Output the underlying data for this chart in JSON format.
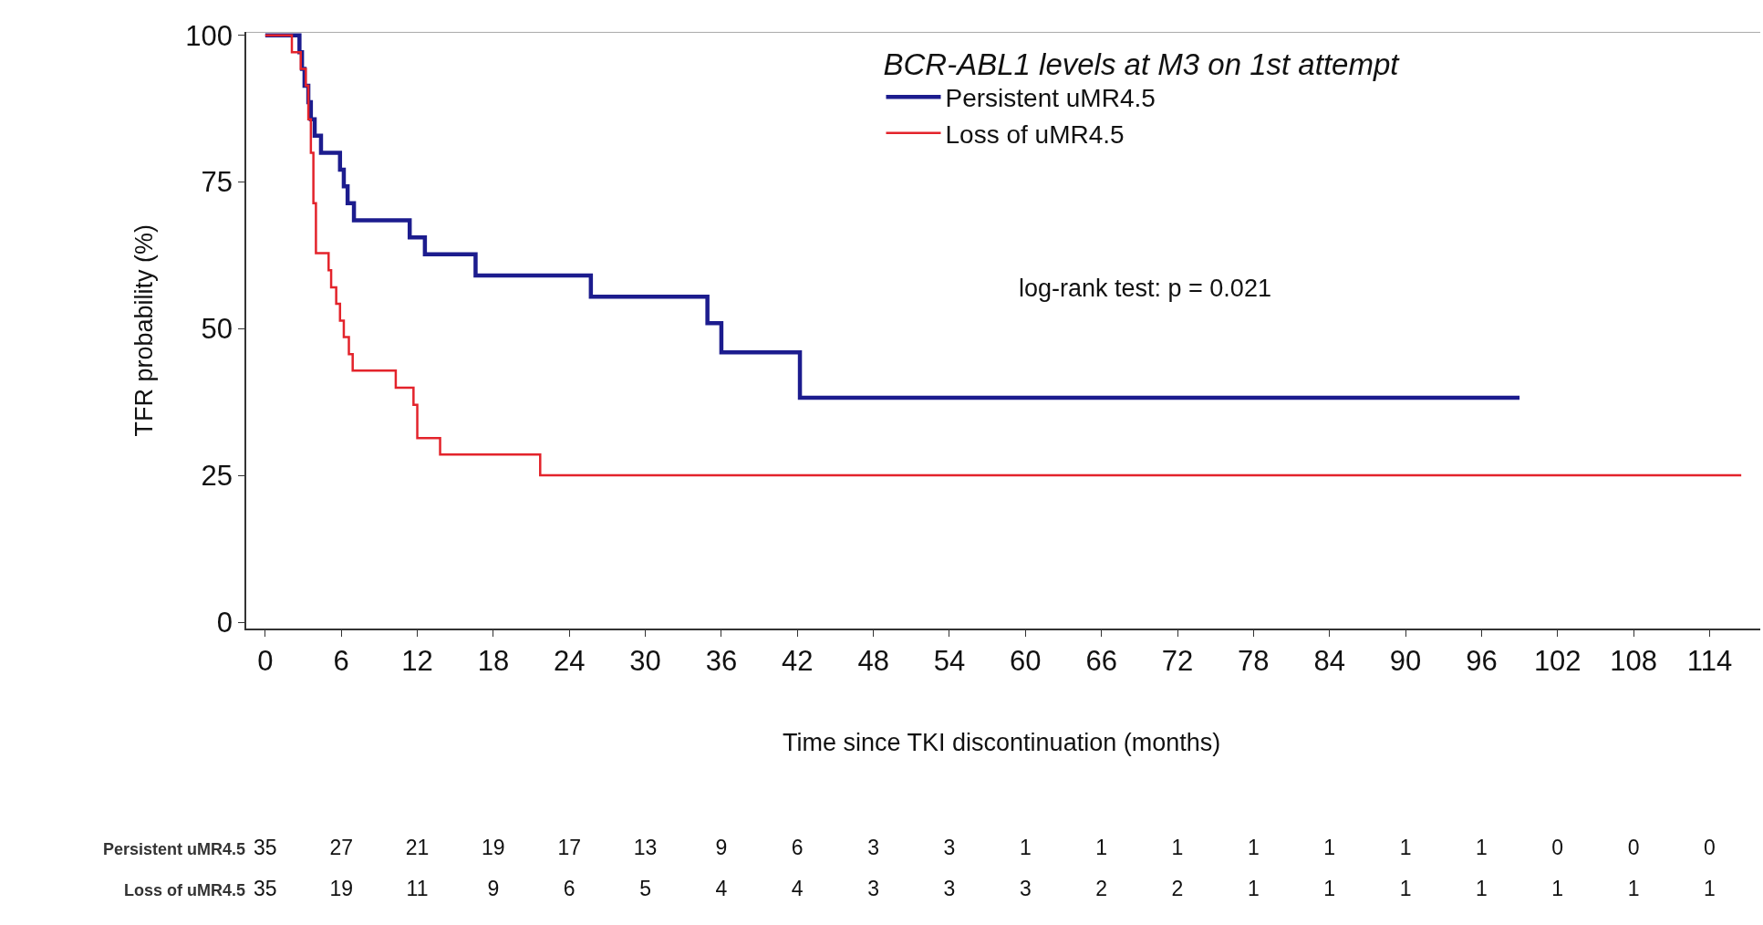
{
  "chart_data": [
    {
      "type": "step",
      "xlabel": "Time since TKI discontinuation (months)",
      "ylabel": "TFR probability (%)",
      "legend_title": "BCR-ABL1 levels at M3 on 1st attempt",
      "legend": "top right",
      "xlim": [
        -1.5,
        118
      ],
      "xticks": [
        0,
        6,
        12,
        18,
        24,
        30,
        36,
        42,
        48,
        54,
        60,
        66,
        72,
        78,
        84,
        90,
        96,
        102,
        108,
        114
      ],
      "ylim": [
        -1,
        100.5
      ],
      "yticks": [
        0,
        25,
        50,
        75,
        100
      ],
      "annotations": [
        "log-rank test: p = 0.021"
      ],
      "series": [
        {
          "name": "Persistent uMR4.5",
          "color": "#1c1c8e",
          "x": [
            0,
            2.7,
            2.9,
            3.1,
            3.4,
            3.6,
            3.9,
            4.4,
            5.9,
            6.2,
            6.5,
            7.0,
            11.4,
            12.6,
            16.6,
            25.7,
            34.9,
            36.0,
            42.2,
            99
          ],
          "values": [
            100,
            97.1,
            94.3,
            91.4,
            88.6,
            85.7,
            82.9,
            80,
            77.1,
            74.3,
            71.4,
            68.5,
            65.6,
            62.7,
            59.1,
            55.5,
            51,
            46,
            38.3,
            38.3
          ]
        },
        {
          "name": "Loss of uMR4.5",
          "color": "#e3232b",
          "x": [
            0,
            2.1,
            2.8,
            3.2,
            3.4,
            3.6,
            3.8,
            4.0,
            5.0,
            5.2,
            5.6,
            5.9,
            6.2,
            6.6,
            6.9,
            10.3,
            11.7,
            12.0,
            13.8,
            21.7,
            116.5
          ],
          "values": [
            100,
            97.1,
            94.3,
            91.4,
            85.7,
            80,
            71.4,
            62.9,
            60,
            57.1,
            54.3,
            51.4,
            48.6,
            45.7,
            42.9,
            40,
            37.1,
            31.4,
            28.6,
            25.1,
            25.1
          ]
        }
      ]
    },
    {
      "type": "heatmap",
      "data_labels": true,
      "categories": [
        null,
        null,
        null,
        null,
        null,
        null,
        null,
        null,
        null,
        null,
        null,
        null,
        null,
        null,
        null,
        null,
        null,
        null,
        null,
        null
      ],
      "y_categories": [
        "Persistent uMR4.5",
        "Loss of uMR4.5"
      ],
      "cells": [
        [
          35,
          27,
          21,
          19,
          17,
          13,
          9,
          6,
          3,
          3,
          1,
          1,
          1,
          1,
          1,
          1,
          1,
          0,
          0,
          0
        ],
        [
          35,
          19,
          11,
          9,
          6,
          5,
          4,
          4,
          3,
          3,
          3,
          2,
          2,
          1,
          1,
          1,
          1,
          1,
          1,
          1
        ]
      ]
    }
  ]
}
